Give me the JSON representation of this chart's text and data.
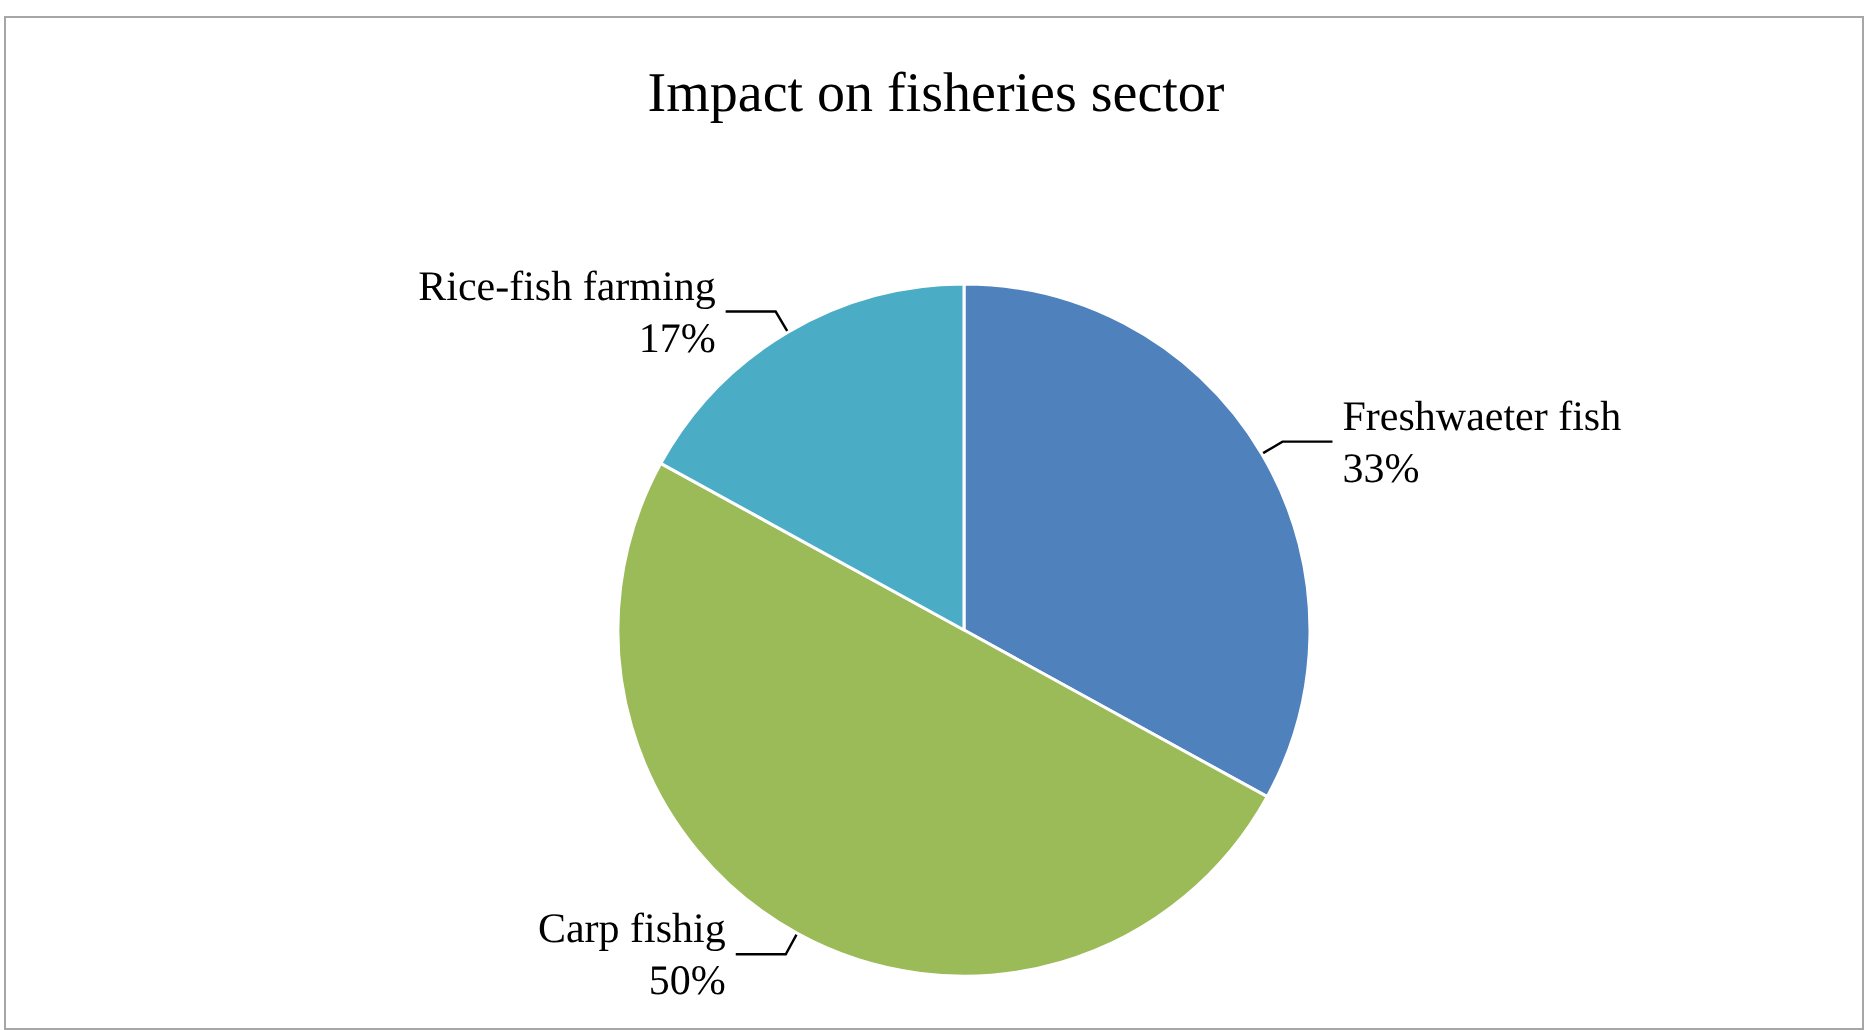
{
  "chart_data": {
    "type": "pie",
    "title": "Impact on fisheries sector",
    "categories": [
      "Freshwaeter fish",
      "Carp fishig",
      "Rice-fish farming"
    ],
    "values": [
      33,
      50,
      17
    ],
    "value_labels": [
      "33%",
      "50%",
      "17%"
    ],
    "colors": [
      "#4f81bd",
      "#9bbb59",
      "#4bacc6"
    ],
    "legend": false
  }
}
